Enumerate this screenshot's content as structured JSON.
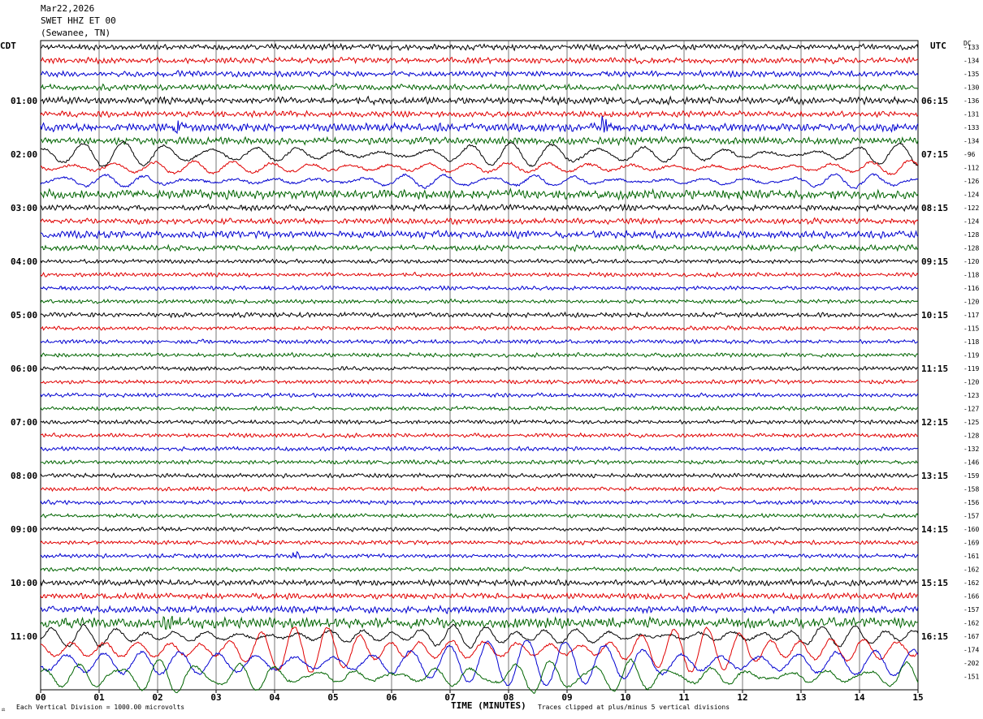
{
  "header": {
    "date": "Mar22,2026",
    "station": "SWET HHZ ET 00",
    "location": "(Sewanee, TN)"
  },
  "left_axis_label": "CDT",
  "right_axis_label": "UTC",
  "dc_label": "DC",
  "x_axis_title": "TIME (MINUTES)",
  "footer_left": "Each Vertical Division = 1000.00 microvolts",
  "footer_right": "Traces clipped at plus/minus 5 vertical divisions",
  "footer_mark": "⚖",
  "chart_data": {
    "type": "line",
    "title": "SWET HHZ ET 00",
    "xlabel": "TIME (MINUTES)",
    "ylabel": "",
    "x_ticks": [
      "00",
      "01",
      "02",
      "03",
      "04",
      "05",
      "06",
      "07",
      "08",
      "09",
      "10",
      "11",
      "12",
      "13",
      "14",
      "15"
    ],
    "xlim": [
      0,
      15
    ],
    "grid": true,
    "trace_colors": [
      "#000000",
      "#e00000",
      "#0000d0",
      "#006400"
    ],
    "left_time_labels": [
      {
        "row": 4,
        "label": "01:00"
      },
      {
        "row": 8,
        "label": "02:00"
      },
      {
        "row": 12,
        "label": "03:00"
      },
      {
        "row": 16,
        "label": "04:00"
      },
      {
        "row": 20,
        "label": "05:00"
      },
      {
        "row": 24,
        "label": "06:00"
      },
      {
        "row": 28,
        "label": "07:00"
      },
      {
        "row": 32,
        "label": "08:00"
      },
      {
        "row": 36,
        "label": "09:00"
      },
      {
        "row": 40,
        "label": "10:00"
      },
      {
        "row": 44,
        "label": "11:00"
      }
    ],
    "right_time_labels": [
      {
        "row": 4,
        "label": "06:15"
      },
      {
        "row": 8,
        "label": "07:15"
      },
      {
        "row": 12,
        "label": "08:15"
      },
      {
        "row": 16,
        "label": "09:15"
      },
      {
        "row": 20,
        "label": "10:15"
      },
      {
        "row": 24,
        "label": "11:15"
      },
      {
        "row": 28,
        "label": "12:15"
      },
      {
        "row": 32,
        "label": "13:15"
      },
      {
        "row": 36,
        "label": "14:15"
      },
      {
        "row": 40,
        "label": "15:15"
      },
      {
        "row": 44,
        "label": "16:15"
      }
    ],
    "dc_offsets": [
      "-133",
      "-134",
      "-135",
      "-130",
      "-136",
      "-131",
      "-133",
      "-134",
      "-96",
      "-112",
      "-126",
      "-124",
      "-122",
      "-124",
      "-128",
      "-128",
      "-120",
      "-118",
      "-116",
      "-120",
      "-117",
      "-115",
      "-118",
      "-119",
      "-119",
      "-120",
      "-123",
      "-127",
      "-125",
      "-128",
      "-132",
      "-146",
      "-159",
      "-158",
      "-156",
      "-157",
      "-160",
      "-169",
      "-161",
      "-162",
      "-162",
      "-166",
      "-157",
      "-162",
      "-167",
      "-174",
      "-202",
      "-151"
    ],
    "trace_amplitude_divisions": [
      0.5,
      0.5,
      0.5,
      0.5,
      0.6,
      0.5,
      0.7,
      0.6,
      2.6,
      1.6,
      1.4,
      0.8,
      0.5,
      0.5,
      0.6,
      0.5,
      0.35,
      0.35,
      0.35,
      0.35,
      0.4,
      0.35,
      0.35,
      0.35,
      0.35,
      0.35,
      0.35,
      0.35,
      0.35,
      0.35,
      0.35,
      0.35,
      0.35,
      0.35,
      0.35,
      0.35,
      0.35,
      0.35,
      0.35,
      0.35,
      0.5,
      0.5,
      0.6,
      0.9,
      2.2,
      4.5,
      4.5,
      3.5
    ],
    "events": [
      {
        "row": 6,
        "minute": 2.35,
        "amplitude_divisions": 1.8
      },
      {
        "row": 6,
        "minute": 9.6,
        "amplitude_divisions": 2.5
      },
      {
        "row": 38,
        "minute": 4.4,
        "amplitude_divisions": 1.0
      },
      {
        "row": 43,
        "minute": 2.2,
        "amplitude_divisions": 1.2
      }
    ]
  }
}
